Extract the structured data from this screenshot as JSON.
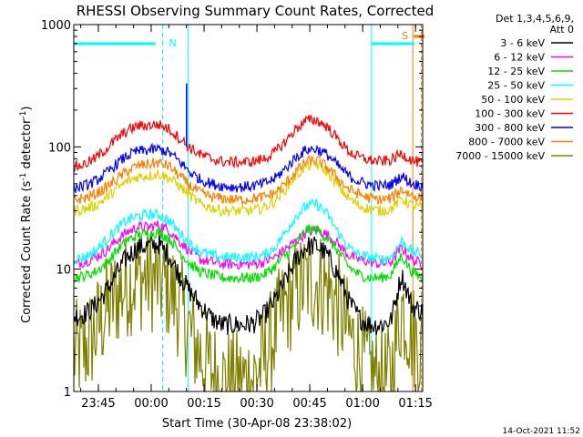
{
  "chart_data": {
    "type": "line",
    "title": "RHESSI Observing Summary Count Rates, Corrected",
    "xlabel": "Start Time (30-Apr-08 23:38:02)",
    "ylabel_main": "Corrected Count Rate (s",
    "ylabel_sup1": "-1",
    "ylabel_mid": " detector",
    "ylabel_sup2": "-1",
    "ylabel_end": ")",
    "yscale": "log",
    "ylim": [
      1,
      1000
    ],
    "xlim_minutes": [
      0,
      99
    ],
    "x_ticks": [
      {
        "minute": 6.97,
        "label": "23:45"
      },
      {
        "minute": 21.97,
        "label": "00:00"
      },
      {
        "minute": 36.97,
        "label": "00:15"
      },
      {
        "minute": 51.97,
        "label": "00:30"
      },
      {
        "minute": 66.97,
        "label": "00:45"
      },
      {
        "minute": 81.97,
        "label": "01:00"
      },
      {
        "minute": 96.97,
        "label": "01:15"
      }
    ],
    "y_ticks": [
      {
        "value": 1,
        "label": "1"
      },
      {
        "value": 10,
        "label": "10"
      },
      {
        "value": 100,
        "label": "100"
      },
      {
        "value": 1000,
        "label": "1000"
      }
    ],
    "legend_header": [
      "Det 1,3,4,5,6,9,",
      "Att 0"
    ],
    "series": [
      {
        "name": "3 - 6 keV",
        "color": "#000000",
        "x": [
          0,
          3,
          6,
          9,
          12,
          15,
          18,
          21,
          24,
          27,
          30,
          33,
          36,
          39,
          42,
          45,
          48,
          51,
          54,
          57,
          60,
          63,
          66,
          69,
          72,
          75,
          78,
          81,
          84,
          87,
          90,
          93,
          96,
          99
        ],
        "values": [
          4.1,
          4.3,
          5,
          6.5,
          9,
          12.5,
          15,
          15.5,
          16,
          13,
          9,
          6.5,
          5,
          4,
          3.5,
          3.5,
          3.5,
          3.6,
          4.2,
          5.5,
          8,
          12,
          15.5,
          15.5,
          13,
          9,
          5.5,
          4,
          3.5,
          3.5,
          3.8,
          9,
          5,
          4.5
        ]
      },
      {
        "name": "6 - 12 keV",
        "color": "#ff00ff",
        "x": [
          0,
          3,
          6,
          9,
          12,
          15,
          18,
          21,
          24,
          27,
          30,
          33,
          36,
          39,
          42,
          45,
          48,
          51,
          54,
          57,
          60,
          63,
          66,
          69,
          72,
          75,
          78,
          81,
          84,
          87,
          90,
          93,
          96,
          99
        ],
        "values": [
          11,
          11.5,
          12.5,
          14,
          17,
          20,
          22,
          22,
          23,
          21,
          17,
          14,
          12,
          11.5,
          11,
          11,
          11,
          11,
          11.5,
          12.5,
          14.5,
          17,
          20,
          21,
          19,
          16,
          13,
          12,
          11.5,
          11,
          11.5,
          15,
          12,
          11
        ]
      },
      {
        "name": "12 - 25 keV",
        "color": "#00e000",
        "x": [
          0,
          3,
          6,
          9,
          12,
          15,
          18,
          21,
          24,
          27,
          30,
          33,
          36,
          39,
          42,
          45,
          48,
          51,
          54,
          57,
          60,
          63,
          66,
          69,
          72,
          75,
          78,
          81,
          84,
          87,
          90,
          93,
          96,
          99
        ],
        "values": [
          8.5,
          8.8,
          9.5,
          11,
          14,
          17,
          19,
          19.5,
          20,
          18,
          14,
          11,
          9.5,
          9,
          8.5,
          8.5,
          8.5,
          8.5,
          9,
          10.5,
          13,
          16,
          21,
          21,
          18,
          14,
          10.5,
          9,
          8.5,
          8.5,
          9,
          13,
          9.5,
          8.5
        ]
      },
      {
        "name": "25 - 50 keV",
        "color": "#00ffff",
        "x": [
          0,
          3,
          6,
          9,
          12,
          15,
          18,
          21,
          24,
          27,
          30,
          33,
          36,
          39,
          42,
          45,
          48,
          51,
          54,
          57,
          60,
          63,
          66,
          69,
          72,
          75,
          78,
          81,
          84,
          87,
          90,
          93,
          96,
          99
        ],
        "values": [
          12,
          12.5,
          14,
          17,
          21,
          25,
          27,
          28,
          28,
          25,
          20,
          16,
          14,
          13,
          12.5,
          12.5,
          12.5,
          12.5,
          13,
          15,
          20,
          27,
          33,
          34,
          28,
          20,
          15,
          13,
          12.5,
          12,
          12.5,
          17,
          14,
          13
        ]
      },
      {
        "name": "50 - 100 keV",
        "color": "#e0d000",
        "x": [
          0,
          3,
          6,
          9,
          12,
          15,
          18,
          21,
          24,
          27,
          30,
          33,
          36,
          39,
          42,
          45,
          48,
          51,
          54,
          57,
          60,
          63,
          66,
          69,
          72,
          75,
          78,
          81,
          84,
          87,
          90,
          93,
          96,
          99
        ],
        "values": [
          30,
          31,
          33,
          38,
          45,
          52,
          57,
          58,
          60,
          56,
          48,
          40,
          34,
          32,
          30,
          30,
          30,
          30,
          32,
          36,
          45,
          58,
          70,
          72,
          62,
          48,
          38,
          33,
          31,
          30,
          31,
          38,
          33,
          32
        ]
      },
      {
        "name": "100 - 300 keV",
        "color": "#ff0000",
        "x": [
          0,
          3,
          6,
          9,
          12,
          15,
          18,
          21,
          24,
          27,
          30,
          33,
          36,
          39,
          42,
          45,
          48,
          51,
          54,
          57,
          60,
          63,
          66,
          69,
          72,
          75,
          78,
          81,
          84,
          87,
          90,
          93,
          96,
          99
        ],
        "values": [
          68,
          72,
          80,
          95,
          115,
          135,
          148,
          150,
          152,
          140,
          118,
          98,
          86,
          80,
          76,
          75,
          75,
          76,
          80,
          90,
          110,
          140,
          165,
          165,
          145,
          115,
          92,
          82,
          78,
          76,
          78,
          88,
          78,
          72
        ]
      },
      {
        "name": "300 - 800 keV",
        "color": "#0000ff",
        "x": [
          0,
          3,
          6,
          9,
          12,
          15,
          18,
          21,
          24,
          27,
          30,
          33,
          36,
          39,
          42,
          45,
          48,
          51,
          54,
          57,
          60,
          63,
          66,
          69,
          72,
          75,
          78,
          81,
          84,
          87,
          90,
          93,
          96,
          99
        ],
        "values": [
          46,
          48,
          52,
          60,
          72,
          84,
          92,
          94,
          96,
          90,
          76,
          62,
          54,
          50,
          48,
          47,
          47,
          48,
          50,
          55,
          66,
          82,
          95,
          96,
          86,
          70,
          58,
          52,
          49,
          48,
          49,
          58,
          50,
          48
        ]
      },
      {
        "name": "800 - 7000 keV",
        "color": "#ff8000",
        "x": [
          0,
          3,
          6,
          9,
          12,
          15,
          18,
          21,
          24,
          27,
          30,
          33,
          36,
          39,
          42,
          45,
          48,
          51,
          54,
          57,
          60,
          63,
          66,
          69,
          72,
          75,
          78,
          81,
          84,
          87,
          90,
          93,
          96,
          99
        ],
        "values": [
          37,
          38,
          41,
          46,
          54,
          63,
          70,
          72,
          74,
          70,
          58,
          48,
          42,
          39,
          38,
          37,
          37,
          38,
          39,
          42,
          50,
          63,
          76,
          78,
          68,
          55,
          45,
          41,
          38,
          37,
          38,
          45,
          40,
          38
        ]
      },
      {
        "name": "7000 - 15000 keV",
        "color": "#808000",
        "x": [
          0,
          3,
          6,
          9,
          12,
          15,
          18,
          21,
          24,
          27,
          30,
          33,
          36,
          39,
          42,
          45,
          48,
          51,
          54,
          57,
          60,
          63,
          66,
          69,
          72,
          75,
          78,
          81,
          84,
          87,
          90,
          93,
          96,
          99
        ],
        "values": [
          2,
          2.2,
          3,
          4.5,
          6,
          7.5,
          8.5,
          8.5,
          8,
          7,
          5,
          3,
          2,
          1.5,
          1.2,
          1.2,
          1.2,
          1.3,
          1.8,
          3,
          5,
          6.5,
          8,
          8,
          7,
          5,
          3,
          2,
          1.5,
          1.2,
          1.3,
          5,
          3,
          2
        ]
      }
    ],
    "markers": {
      "N": {
        "label": "N",
        "color": "#00ffff",
        "start_minute": 0,
        "end_minute": 25.2
      },
      "S": {
        "label": "S",
        "color": "#ff8000",
        "start_minute": 96.2,
        "end_minute": 99
      },
      "cyan_lines_minutes": [
        25.2,
        32.4,
        84.5
      ],
      "cyan_top_bars": [
        [
          0,
          23.2
        ],
        [
          84.5,
          96.7
        ]
      ],
      "orange_lines_minutes": [
        96.2,
        98.6
      ]
    },
    "spike": {
      "minute": 32.0,
      "value": 330,
      "color": "#0000ff"
    }
  },
  "footer": {
    "timestamp": "14-Oct-2021 11:52"
  }
}
